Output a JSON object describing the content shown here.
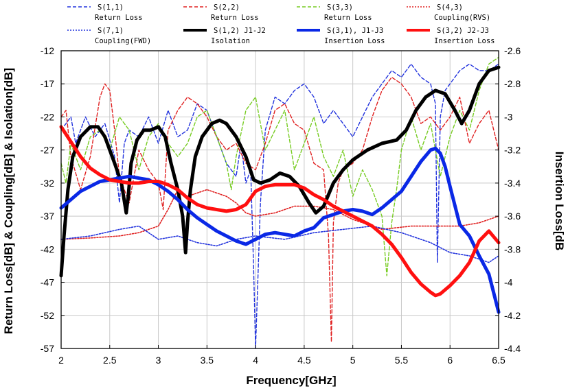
{
  "chart_data": {
    "type": "line",
    "xlabel": "Frequency[GHz]",
    "ylabel_left": "Return Loss[dB] & Coupling[dB] & Isolation[dB]",
    "ylabel_right": "Insertion Loss[dB",
    "xlim": [
      2,
      6.5
    ],
    "ylim_left": [
      -57,
      -12
    ],
    "ylim_right": [
      -4.4,
      -2.6
    ],
    "x_ticks": [
      "2",
      "2.5",
      "3",
      "3.5",
      "4",
      "4.5",
      "5",
      "5.5",
      "6",
      "6.5"
    ],
    "y_left_ticks": [
      "-12",
      "-17",
      "-22",
      "-27",
      "-32",
      "-37",
      "-42",
      "-47",
      "-52",
      "-57"
    ],
    "y_right_ticks": [
      "-2.6",
      "-2.8",
      "-3",
      "-3.2",
      "-3.4",
      "-3.6",
      "-3.8",
      "-4",
      "-4.2",
      "-4.4"
    ],
    "grid": true,
    "legend_position": "top",
    "series": [
      {
        "name": "S(1,1)",
        "sub": "Return Loss",
        "color": "#2233dd",
        "style": "dashed",
        "width": 1.4,
        "axis": "left",
        "x": [
          2.0,
          2.1,
          2.15,
          2.25,
          2.35,
          2.45,
          2.55,
          2.6,
          2.65,
          2.7,
          2.8,
          2.9,
          3.0,
          3.1,
          3.2,
          3.3,
          3.4,
          3.5,
          3.6,
          3.7,
          3.8,
          3.85,
          3.9,
          3.95,
          3.98,
          4.0,
          4.05,
          4.1,
          4.2,
          4.3,
          4.4,
          4.5,
          4.6,
          4.7,
          4.8,
          4.9,
          5.0,
          5.1,
          5.2,
          5.3,
          5.4,
          5.5,
          5.6,
          5.7,
          5.8,
          5.85,
          5.87,
          5.9,
          5.95,
          6.0,
          6.1,
          6.2,
          6.3,
          6.4,
          6.5
        ],
        "y": [
          -24,
          -22,
          -26,
          -22,
          -25,
          -23,
          -28,
          -35,
          -26,
          -24,
          -25,
          -22,
          -26,
          -21,
          -25,
          -24,
          -20,
          -21,
          -25,
          -29,
          -31,
          -26,
          -32,
          -30,
          -45,
          -57,
          -35,
          -24,
          -19,
          -20,
          -18,
          -17,
          -19,
          -23,
          -21,
          -23,
          -25,
          -22,
          -19,
          -17,
          -15,
          -16,
          -14,
          -16,
          -17,
          -20,
          -44,
          -22,
          -18,
          -17,
          -15,
          -14,
          -15,
          -15,
          -14
        ]
      },
      {
        "name": "S(2,2)",
        "sub": "Return Loss",
        "color": "#e02020",
        "style": "dashed",
        "width": 1.4,
        "axis": "left",
        "x": [
          2.0,
          2.05,
          2.1,
          2.2,
          2.3,
          2.4,
          2.45,
          2.5,
          2.55,
          2.6,
          2.7,
          2.8,
          2.9,
          3.0,
          3.05,
          3.1,
          3.2,
          3.3,
          3.4,
          3.5,
          3.6,
          3.7,
          3.8,
          3.9,
          4.0,
          4.1,
          4.2,
          4.3,
          4.4,
          4.5,
          4.6,
          4.7,
          4.75,
          4.78,
          4.8,
          4.85,
          4.9,
          5.0,
          5.1,
          5.2,
          5.3,
          5.4,
          5.5,
          5.6,
          5.7,
          5.8,
          5.9,
          6.0,
          6.1,
          6.2,
          6.3,
          6.4,
          6.5
        ],
        "y": [
          -22,
          -21,
          -28,
          -33,
          -28,
          -19,
          -17,
          -18,
          -24,
          -31,
          -35,
          -27,
          -30,
          -32,
          -36,
          -24,
          -21,
          -19,
          -20,
          -22,
          -25,
          -27,
          -26,
          -29,
          -30,
          -26,
          -21,
          -20,
          -23,
          -24,
          -29,
          -30,
          -40,
          -56,
          -38,
          -32,
          -30,
          -29,
          -27,
          -22,
          -18,
          -16,
          -17,
          -19,
          -23,
          -22,
          -24,
          -22,
          -19,
          -26,
          -23,
          -21,
          -27
        ]
      },
      {
        "name": "S(3,3)",
        "sub": "Return Loss",
        "color": "#77cc22",
        "style": "dashed",
        "width": 1.4,
        "axis": "left",
        "x": [
          2.0,
          2.05,
          2.1,
          2.2,
          2.3,
          2.4,
          2.5,
          2.6,
          2.7,
          2.8,
          2.9,
          3.0,
          3.1,
          3.2,
          3.3,
          3.4,
          3.5,
          3.6,
          3.7,
          3.75,
          3.8,
          3.9,
          4.0,
          4.1,
          4.2,
          4.3,
          4.4,
          4.5,
          4.6,
          4.7,
          4.8,
          4.9,
          5.0,
          5.1,
          5.2,
          5.3,
          5.35,
          5.4,
          5.45,
          5.5,
          5.6,
          5.7,
          5.8,
          5.9,
          6.0,
          6.1,
          6.2,
          6.3,
          6.4,
          6.5
        ],
        "y": [
          -29,
          -32,
          -26,
          -30,
          -25,
          -24,
          -27,
          -22,
          -24,
          -30,
          -25,
          -23,
          -26,
          -28,
          -26,
          -22,
          -21,
          -25,
          -29,
          -33,
          -28,
          -21,
          -19,
          -27,
          -24,
          -21,
          -30,
          -26,
          -22,
          -28,
          -31,
          -27,
          -34,
          -30,
          -33,
          -37,
          -46,
          -38,
          -33,
          -27,
          -22,
          -27,
          -23,
          -31,
          -25,
          -21,
          -24,
          -18,
          -14,
          -13
        ]
      },
      {
        "name": "S(4,3)",
        "sub": "Coupling(RVS)",
        "color": "#e02020",
        "style": "dotted",
        "width": 1.6,
        "axis": "left",
        "x": [
          2.0,
          2.3,
          2.6,
          2.8,
          3.0,
          3.1,
          3.2,
          3.3,
          3.5,
          3.7,
          3.8,
          3.9,
          4.0,
          4.2,
          4.4,
          4.6,
          4.8,
          5.0,
          5.3,
          5.6,
          5.9,
          6.1,
          6.3,
          6.5
        ],
        "y": [
          -40.5,
          -40.3,
          -40,
          -39.5,
          -38.5,
          -36,
          -33,
          -34,
          -33,
          -34,
          -35,
          -36.5,
          -37,
          -36.5,
          -35.5,
          -35.5,
          -36,
          -37.5,
          -39,
          -38.5,
          -38.5,
          -38.5,
          -38,
          -37
        ]
      },
      {
        "name": "S(7,1)",
        "sub": "Coupling(FWD)",
        "color": "#2233dd",
        "style": "dotted",
        "width": 1.6,
        "axis": "left",
        "x": [
          2.0,
          2.3,
          2.6,
          2.8,
          3.0,
          3.2,
          3.4,
          3.6,
          3.8,
          4.0,
          4.3,
          4.6,
          4.9,
          5.2,
          5.5,
          5.8,
          6.0,
          6.2,
          6.4,
          6.5
        ],
        "y": [
          -40.5,
          -40,
          -39,
          -38.5,
          -40.5,
          -40,
          -41,
          -41.5,
          -40.5,
          -40,
          -40.5,
          -39.5,
          -39,
          -38.5,
          -39.5,
          -41,
          -42.5,
          -43,
          -44,
          -43
        ]
      },
      {
        "name": "S(1,2) J1-J2",
        "sub": "Isolation",
        "color": "#000000",
        "style": "solid",
        "width": 5,
        "axis": "left",
        "x": [
          2.0,
          2.03,
          2.07,
          2.12,
          2.2,
          2.3,
          2.38,
          2.45,
          2.55,
          2.62,
          2.67,
          2.69,
          2.72,
          2.78,
          2.85,
          2.92,
          3.0,
          3.07,
          3.13,
          3.2,
          3.25,
          3.28,
          3.3,
          3.33,
          3.38,
          3.45,
          3.55,
          3.63,
          3.7,
          3.8,
          3.9,
          3.98,
          4.05,
          4.15,
          4.25,
          4.35,
          4.45,
          4.55,
          4.62,
          4.7,
          4.8,
          4.9,
          5.0,
          5.15,
          5.3,
          5.45,
          5.55,
          5.65,
          5.75,
          5.85,
          5.95,
          6.05,
          6.12,
          6.2,
          6.3,
          6.4,
          6.5
        ],
        "y": [
          -46,
          -40,
          -33,
          -28,
          -25,
          -23.5,
          -23.5,
          -25,
          -29,
          -32,
          -36.5,
          -34,
          -29,
          -25.5,
          -24,
          -24,
          -23.5,
          -25,
          -29,
          -33,
          -37,
          -42.5,
          -38,
          -33,
          -28,
          -25,
          -23,
          -22.5,
          -23,
          -25,
          -28,
          -31.5,
          -32,
          -31.5,
          -30.5,
          -31,
          -32.5,
          -35,
          -36.5,
          -35.5,
          -32,
          -30,
          -28.5,
          -27,
          -26,
          -25.5,
          -24,
          -21,
          -19,
          -18,
          -18.5,
          -21,
          -23,
          -21,
          -17,
          -15,
          -14.5
        ]
      },
      {
        "name": "S(3,1), J1-J3",
        "sub": "Insertion Loss",
        "color": "#0a28e6",
        "style": "solid",
        "width": 5,
        "axis": "right",
        "x": [
          2.0,
          2.1,
          2.2,
          2.3,
          2.4,
          2.5,
          2.6,
          2.7,
          2.8,
          2.9,
          3.0,
          3.1,
          3.2,
          3.3,
          3.4,
          3.5,
          3.6,
          3.7,
          3.8,
          3.9,
          4.0,
          4.1,
          4.2,
          4.3,
          4.4,
          4.5,
          4.6,
          4.7,
          4.8,
          4.9,
          5.0,
          5.1,
          5.2,
          5.3,
          5.4,
          5.5,
          5.6,
          5.7,
          5.8,
          5.85,
          5.9,
          5.95,
          6.0,
          6.1,
          6.2,
          6.3,
          6.4,
          6.5
        ],
        "y": [
          -3.55,
          -3.5,
          -3.45,
          -3.42,
          -3.39,
          -3.38,
          -3.37,
          -3.36,
          -3.37,
          -3.38,
          -3.41,
          -3.45,
          -3.5,
          -3.56,
          -3.61,
          -3.65,
          -3.69,
          -3.72,
          -3.75,
          -3.77,
          -3.74,
          -3.71,
          -3.7,
          -3.71,
          -3.72,
          -3.69,
          -3.67,
          -3.61,
          -3.59,
          -3.57,
          -3.56,
          -3.57,
          -3.59,
          -3.55,
          -3.5,
          -3.45,
          -3.36,
          -3.27,
          -3.2,
          -3.19,
          -3.22,
          -3.3,
          -3.42,
          -3.65,
          -3.72,
          -3.84,
          -3.95,
          -4.18
        ]
      },
      {
        "name": "S(3,2) J2-J3",
        "sub": "Insertion Loss",
        "color": "#ff1010",
        "style": "solid",
        "width": 5,
        "axis": "right",
        "x": [
          2.0,
          2.1,
          2.2,
          2.3,
          2.4,
          2.5,
          2.6,
          2.7,
          2.8,
          2.9,
          3.0,
          3.1,
          3.2,
          3.3,
          3.4,
          3.5,
          3.6,
          3.7,
          3.8,
          3.9,
          4.0,
          4.1,
          4.2,
          4.3,
          4.4,
          4.5,
          4.6,
          4.7,
          4.8,
          4.9,
          5.0,
          5.1,
          5.2,
          5.3,
          5.4,
          5.5,
          5.6,
          5.7,
          5.8,
          5.85,
          5.9,
          6.0,
          6.1,
          6.2,
          6.3,
          6.4,
          6.5
        ],
        "y": [
          -3.06,
          -3.15,
          -3.24,
          -3.31,
          -3.35,
          -3.38,
          -3.39,
          -3.4,
          -3.4,
          -3.39,
          -3.39,
          -3.41,
          -3.44,
          -3.49,
          -3.53,
          -3.55,
          -3.56,
          -3.57,
          -3.56,
          -3.53,
          -3.45,
          -3.42,
          -3.41,
          -3.41,
          -3.41,
          -3.43,
          -3.47,
          -3.5,
          -3.54,
          -3.57,
          -3.6,
          -3.63,
          -3.66,
          -3.71,
          -3.77,
          -3.85,
          -3.94,
          -4.01,
          -4.06,
          -4.08,
          -4.07,
          -4.02,
          -3.96,
          -3.88,
          -3.75,
          -3.69,
          -3.76
        ]
      }
    ]
  }
}
